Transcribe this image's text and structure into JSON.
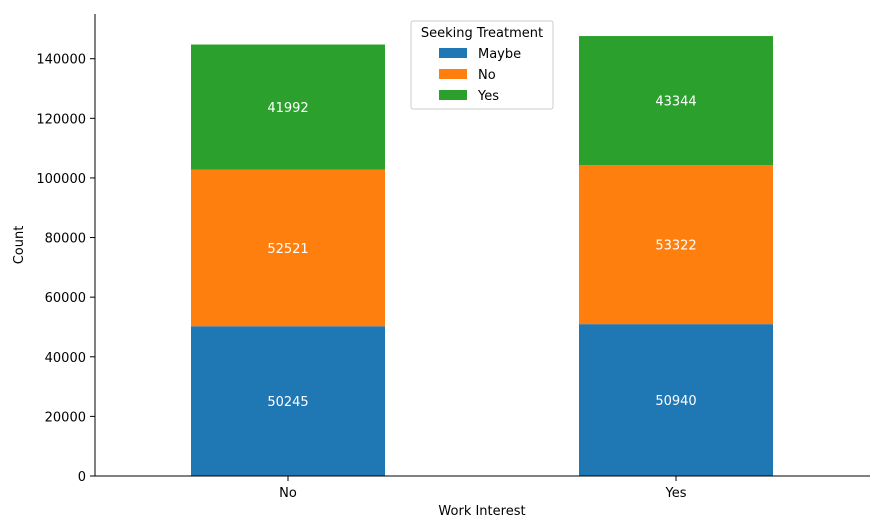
{
  "chart_data": {
    "type": "bar",
    "stacked": true,
    "categories": [
      "No",
      "Yes"
    ],
    "series": [
      {
        "name": "Maybe",
        "values": [
          50245,
          50940
        ],
        "color": "#1f77b4"
      },
      {
        "name": "No",
        "values": [
          52521,
          53322
        ],
        "color": "#ff7f0e"
      },
      {
        "name": "Yes",
        "values": [
          41992,
          43344
        ],
        "color": "#2ca02c"
      }
    ],
    "xlabel": "Work Interest",
    "ylabel": "Count",
    "ylim": [
      0,
      155000
    ],
    "yticks": [
      "0",
      "20000",
      "40000",
      "60000",
      "80000",
      "100000",
      "120000",
      "140000"
    ],
    "yticks_values": [
      0,
      20000,
      40000,
      60000,
      80000,
      100000,
      120000,
      140000
    ],
    "legend": {
      "title": "Seeking Treatment",
      "placement": "top-center"
    },
    "grid": false
  }
}
